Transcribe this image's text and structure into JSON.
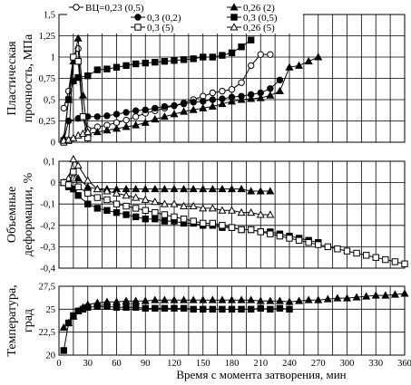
{
  "chart_data": [
    {
      "type": "line",
      "ylabel_lines": [
        "Пластическая",
        "прочность, МПа"
      ],
      "xlim": [
        0,
        360
      ],
      "ylim": [
        0,
        1.5
      ],
      "yticks": [
        "0",
        "0,25",
        "0,5",
        "0,75",
        "1",
        "1,25",
        "1,5"
      ],
      "ytick_values": [
        0,
        0.25,
        0.5,
        0.75,
        1,
        1.25,
        1.5
      ],
      "grid": true,
      "legend_position": "top",
      "legend": [
        "ВЦ=0,23 (0,5)",
        "0,26 (2)",
        "0,3 (0,2)",
        "0,3 (0,5)",
        "0,3 (5)",
        "0,26 (5)"
      ],
      "series": [
        {
          "name": "ВЦ=0,23 (0,5)",
          "marker": "circle-open",
          "x": [
            5,
            10,
            15,
            20,
            25,
            30,
            40,
            50,
            60,
            70,
            80,
            90,
            100,
            110,
            120,
            130,
            140,
            150,
            160,
            170,
            180,
            190,
            200,
            210,
            220
          ],
          "y": [
            0.4,
            0.6,
            1.0,
            1.1,
            0.3,
            0.15,
            0.18,
            0.2,
            0.23,
            0.26,
            0.3,
            0.34,
            0.37,
            0.4,
            0.43,
            0.46,
            0.5,
            0.54,
            0.58,
            0.6,
            0.62,
            0.7,
            0.9,
            1.03,
            1.03
          ]
        },
        {
          "name": "0,26 (2)",
          "marker": "triangle-filled",
          "x": [
            5,
            10,
            15,
            20,
            25,
            30,
            40,
            50,
            60,
            70,
            80,
            90,
            100,
            110,
            120,
            130,
            140,
            150,
            160,
            170,
            180,
            190,
            200,
            210,
            220,
            230,
            240,
            250,
            260,
            270
          ],
          "y": [
            0.05,
            0.5,
            0.95,
            1.22,
            0.55,
            0.1,
            0.12,
            0.14,
            0.16,
            0.18,
            0.2,
            0.23,
            0.27,
            0.3,
            0.33,
            0.36,
            0.38,
            0.4,
            0.42,
            0.45,
            0.48,
            0.5,
            0.51,
            0.52,
            0.55,
            0.6,
            0.88,
            0.9,
            0.95,
            1.0
          ]
        },
        {
          "name": "0,3 (0,2)",
          "marker": "circle-filled",
          "x": [
            5,
            10,
            20,
            30,
            40,
            50,
            60,
            70,
            80,
            90,
            100,
            110,
            120,
            130,
            140,
            150,
            160,
            170,
            180,
            190,
            200,
            210,
            220,
            230
          ],
          "y": [
            0.02,
            0.25,
            0.28,
            0.3,
            0.3,
            0.31,
            0.33,
            0.35,
            0.37,
            0.38,
            0.4,
            0.42,
            0.43,
            0.45,
            0.47,
            0.48,
            0.5,
            0.51,
            0.53,
            0.54,
            0.56,
            0.58,
            0.63,
            0.73
          ]
        },
        {
          "name": "0,3 (0,5)",
          "marker": "square-filled",
          "x": [
            5,
            10,
            15,
            20,
            30,
            40,
            50,
            60,
            70,
            80,
            90,
            100,
            110,
            120,
            130,
            140,
            150,
            160,
            170,
            180,
            190,
            200
          ],
          "y": [
            0.02,
            0.5,
            0.72,
            0.76,
            0.78,
            0.85,
            0.86,
            0.88,
            0.9,
            0.92,
            0.93,
            0.94,
            0.95,
            0.96,
            0.97,
            0.98,
            1.0,
            1.0,
            1.02,
            1.05,
            1.12,
            1.2
          ]
        },
        {
          "name": "0,3 (5)",
          "marker": "square-open",
          "x": [
            5,
            10,
            15,
            20,
            25,
            30
          ],
          "y": [
            0.0,
            0.02,
            1.0,
            0.95,
            0.3,
            0.05
          ]
        },
        {
          "name": "0,26 (5)",
          "marker": "triangle-open",
          "x": [
            5,
            10,
            15,
            20,
            25,
            30
          ],
          "y": [
            0.02,
            0.03,
            0.05,
            0.08,
            0.1,
            0.12
          ]
        }
      ]
    },
    {
      "type": "line",
      "ylabel_lines": [
        "Объемные",
        "деформации, %"
      ],
      "xlim": [
        0,
        360
      ],
      "ylim": [
        -0.4,
        0.1
      ],
      "yticks": [
        "-0,4",
        "-0,3",
        "-0,2",
        "-0,1",
        "0",
        "0,1"
      ],
      "ytick_values": [
        -0.4,
        -0.3,
        -0.2,
        -0.1,
        0,
        0.1
      ],
      "grid": true,
      "series": [
        {
          "name": "0,26 (2)",
          "marker": "triangle-filled",
          "x": [
            5,
            10,
            15,
            20,
            30,
            40,
            50,
            60,
            70,
            80,
            90,
            100,
            110,
            120,
            130,
            140,
            150,
            160,
            170,
            180,
            190,
            200,
            210,
            220
          ],
          "y": [
            0,
            0,
            0.05,
            0.02,
            -0.02,
            -0.03,
            -0.03,
            -0.03,
            -0.03,
            -0.03,
            -0.03,
            -0.03,
            -0.03,
            -0.03,
            -0.03,
            -0.03,
            -0.03,
            -0.03,
            -0.03,
            -0.03,
            -0.03,
            -0.04,
            -0.04,
            -0.04
          ]
        },
        {
          "name": "0,26 (5)",
          "marker": "triangle-open",
          "x": [
            5,
            10,
            15,
            20,
            30,
            40,
            50,
            60,
            70,
            80,
            90,
            100,
            110,
            120,
            130,
            140,
            150,
            160,
            170,
            180,
            190,
            200,
            210,
            220
          ],
          "y": [
            0,
            0.02,
            0.11,
            0.08,
            0.01,
            -0.03,
            -0.04,
            -0.05,
            -0.06,
            -0.07,
            -0.08,
            -0.09,
            -0.1,
            -0.1,
            -0.11,
            -0.11,
            -0.12,
            -0.12,
            -0.13,
            -0.13,
            -0.14,
            -0.14,
            -0.15,
            -0.15
          ]
        },
        {
          "name": "0,3 (0,5)",
          "marker": "square-filled",
          "x": [
            5,
            10,
            15,
            20,
            30,
            40,
            50,
            60,
            70,
            80,
            90,
            100,
            110,
            120,
            130,
            140,
            150,
            160,
            170,
            180,
            190,
            200,
            210,
            220,
            230,
            240,
            250,
            260,
            270
          ],
          "y": [
            0,
            -0.02,
            -0.03,
            -0.06,
            -0.1,
            -0.12,
            -0.13,
            -0.14,
            -0.15,
            -0.16,
            -0.17,
            -0.17,
            -0.18,
            -0.18,
            -0.19,
            -0.19,
            -0.2,
            -0.2,
            -0.21,
            -0.21,
            -0.22,
            -0.22,
            -0.23,
            -0.23,
            -0.24,
            -0.25,
            -0.26,
            -0.27,
            -0.28
          ]
        },
        {
          "name": "0,3 (5)",
          "marker": "square-open",
          "x": [
            5,
            10,
            15,
            20,
            30,
            40,
            50,
            60,
            70,
            80,
            90,
            100,
            110,
            120,
            130,
            140,
            150,
            160,
            170,
            180,
            190,
            200,
            210,
            220,
            230,
            240,
            250,
            260,
            270,
            280,
            290,
            300,
            310,
            320,
            330,
            340,
            350,
            360
          ],
          "y": [
            0,
            -0.01,
            0.05,
            -0.02,
            -0.05,
            -0.07,
            -0.08,
            -0.1,
            -0.11,
            -0.12,
            -0.13,
            -0.14,
            -0.15,
            -0.16,
            -0.17,
            -0.18,
            -0.19,
            -0.19,
            -0.2,
            -0.21,
            -0.22,
            -0.22,
            -0.23,
            -0.24,
            -0.25,
            -0.26,
            -0.27,
            -0.28,
            -0.29,
            -0.3,
            -0.31,
            -0.32,
            -0.33,
            -0.34,
            -0.35,
            -0.36,
            -0.37,
            -0.38
          ]
        }
      ]
    },
    {
      "type": "line",
      "ylabel_lines": [
        "Температура,",
        "град"
      ],
      "xlabel": "Время с момента затворения, мин",
      "xlim": [
        0,
        360
      ],
      "ylim": [
        20,
        27.5
      ],
      "yticks": [
        "20",
        "22,5",
        "25",
        "27,5"
      ],
      "ytick_values": [
        20,
        22.5,
        25,
        27.5
      ],
      "xticks": [
        "0",
        "30",
        "60",
        "90",
        "120",
        "150",
        "180",
        "210",
        "240",
        "270",
        "300",
        "330",
        "360"
      ],
      "xtick_values": [
        0,
        30,
        60,
        90,
        120,
        150,
        180,
        210,
        240,
        270,
        300,
        330,
        360
      ],
      "grid": true,
      "series": [
        {
          "name": "0,3 (0,5)",
          "marker": "square-filled",
          "x": [
            5,
            10,
            15,
            20,
            25,
            30,
            40,
            50,
            60,
            70,
            80,
            90,
            100,
            110,
            120,
            130,
            140,
            150,
            160,
            170,
            180,
            190,
            200,
            210,
            220,
            230,
            240
          ],
          "y": [
            20.5,
            23.5,
            24.3,
            24.8,
            25.0,
            25.2,
            25.3,
            25.3,
            25.2,
            25.2,
            25.2,
            25.1,
            25.1,
            25.1,
            25.1,
            25.1,
            25.0,
            25.0,
            25.0,
            25.0,
            25.0,
            25.0,
            25.0,
            25.1,
            25.0,
            25.1,
            25.0
          ]
        },
        {
          "name": "0,26 (2)",
          "marker": "triangle-filled",
          "x": [
            5,
            10,
            15,
            20,
            25,
            30,
            40,
            50,
            60,
            70,
            80,
            90,
            100,
            110,
            120,
            130,
            140,
            150,
            160,
            170,
            180,
            190,
            200,
            210,
            220,
            230,
            240,
            250,
            260,
            270,
            280,
            290,
            300,
            310,
            320,
            330,
            340,
            350,
            360
          ],
          "y": [
            23.0,
            23.5,
            24.2,
            24.8,
            25.2,
            25.5,
            25.7,
            25.8,
            25.8,
            25.9,
            25.9,
            25.9,
            26.0,
            26.0,
            26.0,
            26.0,
            26.0,
            26.0,
            26.0,
            26.0,
            26.0,
            26.0,
            26.0,
            25.9,
            25.9,
            25.9,
            25.8,
            25.9,
            26.0,
            26.0,
            26.1,
            26.2,
            26.2,
            26.3,
            26.4,
            26.5,
            26.5,
            26.6,
            26.7
          ]
        }
      ]
    }
  ]
}
